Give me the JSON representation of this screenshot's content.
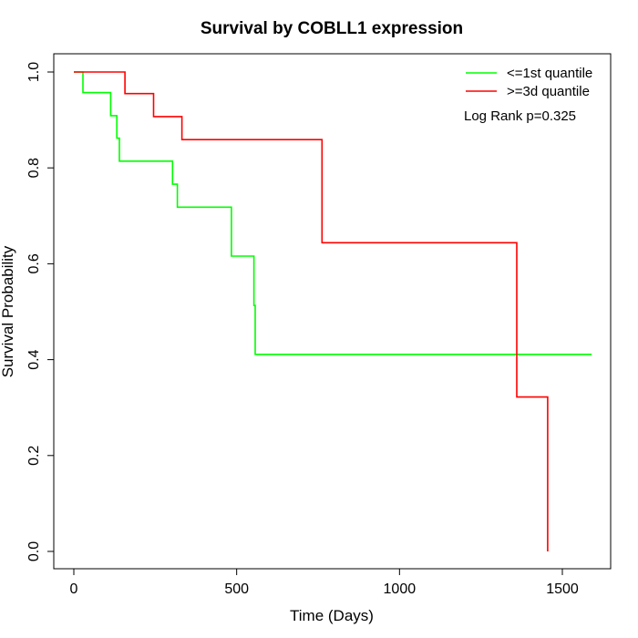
{
  "chart_data": {
    "type": "line",
    "title": "Survival by COBLL1 expression",
    "xlabel": "Time (Days)",
    "ylabel": "Survival Probability",
    "xlim": [
      0,
      1600
    ],
    "ylim": [
      0,
      1.0
    ],
    "x_ticks": [
      0,
      500,
      1000,
      1500
    ],
    "x_tick_labels": [
      "0",
      "500",
      "1000",
      "1500"
    ],
    "y_ticks": [
      0.0,
      0.2,
      0.4,
      0.6,
      0.8,
      1.0
    ],
    "y_tick_labels": [
      "0.0",
      "0.2",
      "0.4",
      "0.6",
      "0.8",
      "1.0"
    ],
    "grid": false,
    "legend_position": "top-right",
    "annotation": "Log Rank p=0.325",
    "series": [
      {
        "name": "<=1st quantile",
        "color": "#00ff00",
        "step": true,
        "points": [
          [
            0,
            1.0
          ],
          [
            28,
            1.0
          ],
          [
            28,
            0.957
          ],
          [
            113,
            0.957
          ],
          [
            113,
            0.909
          ],
          [
            132,
            0.909
          ],
          [
            132,
            0.862
          ],
          [
            140,
            0.862
          ],
          [
            140,
            0.814
          ],
          [
            303,
            0.814
          ],
          [
            303,
            0.766
          ],
          [
            318,
            0.766
          ],
          [
            318,
            0.718
          ],
          [
            484,
            0.718
          ],
          [
            484,
            0.616
          ],
          [
            553,
            0.616
          ],
          [
            553,
            0.513
          ],
          [
            557,
            0.513
          ],
          [
            557,
            0.411
          ],
          [
            1590,
            0.411
          ]
        ]
      },
      {
        "name": ">=3d quantile",
        "color": "#ff0000",
        "step": true,
        "points": [
          [
            0,
            1.0
          ],
          [
            157,
            1.0
          ],
          [
            157,
            0.955
          ],
          [
            245,
            0.955
          ],
          [
            245,
            0.907
          ],
          [
            332,
            0.907
          ],
          [
            332,
            0.859
          ],
          [
            762,
            0.859
          ],
          [
            762,
            0.644
          ],
          [
            1360,
            0.644
          ],
          [
            1360,
            0.322
          ],
          [
            1455,
            0.322
          ],
          [
            1455,
            0.0
          ]
        ]
      }
    ]
  }
}
